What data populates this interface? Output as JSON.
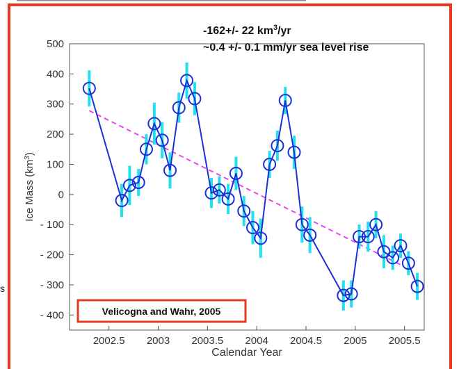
{
  "chart_data": {
    "type": "scatter",
    "annotation_lines": [
      "-162+/- 22 km",
      "3",
      "/yr",
      "~0.4 +/- 0.1 mm/yr sea level rise"
    ],
    "xlabel": "Calendar Year",
    "ylabel": "Ice Mass (km",
    "ylabel_sup": "3",
    "ylabel_end": ")",
    "xlim": [
      2002.1,
      2005.7
    ],
    "ylim": [
      -450,
      500
    ],
    "xticks": [
      2002.5,
      2003,
      2003.5,
      2004,
      2004.5,
      2005,
      2005.5
    ],
    "xtick_labels": [
      "2002.5",
      "2003",
      "2003.5",
      "2004",
      "2004.5",
      "2005",
      "2005.5"
    ],
    "yticks": [
      500,
      400,
      300,
      200,
      100,
      0,
      -100,
      -200,
      -300,
      -400
    ],
    "ytick_labels": [
      "500",
      "400",
      "300",
      "200",
      "100",
      "0",
      "- 100",
      "- 200",
      "- 300",
      "- 400"
    ],
    "source_label": "Velicogna and Wahr, 2005",
    "colors": {
      "series": "#1a2fd6",
      "error_bars": "#22e0ee",
      "trend": "#ee44ee",
      "frame": "#e8391f"
    },
    "series": [
      {
        "x": [
          2002.3,
          2002.63,
          2002.71,
          2002.8,
          2002.88,
          2002.96,
          2003.04,
          2003.12,
          2003.21,
          2003.29,
          2003.37,
          2003.54,
          2003.62,
          2003.71,
          2003.79,
          2003.87,
          2003.96,
          2004.04,
          2004.13,
          2004.21,
          2004.29,
          2004.38,
          2004.46,
          2004.54,
          2004.88,
          2004.96,
          2005.04,
          2005.13,
          2005.21,
          2005.29,
          2005.38,
          2005.46,
          2005.54,
          2005.63
        ],
        "y": [
          352,
          -20,
          30,
          40,
          150,
          235,
          180,
          80,
          288,
          378,
          318,
          5,
          15,
          -15,
          70,
          -55,
          -110,
          -145,
          100,
          162,
          312,
          140,
          -100,
          -135,
          -335,
          -330,
          -140,
          -140,
          -100,
          -190,
          -210,
          -170,
          -228,
          -305
        ],
        "err": [
          60,
          55,
          65,
          45,
          50,
          70,
          60,
          60,
          50,
          60,
          55,
          50,
          45,
          50,
          55,
          50,
          55,
          65,
          45,
          50,
          45,
          55,
          60,
          60,
          50,
          45,
          40,
          50,
          45,
          55,
          40,
          40,
          40,
          45
        ]
      }
    ],
    "trend": {
      "x": [
        2002.3,
        2005.46
      ],
      "y": [
        278,
        -233
      ]
    }
  }
}
